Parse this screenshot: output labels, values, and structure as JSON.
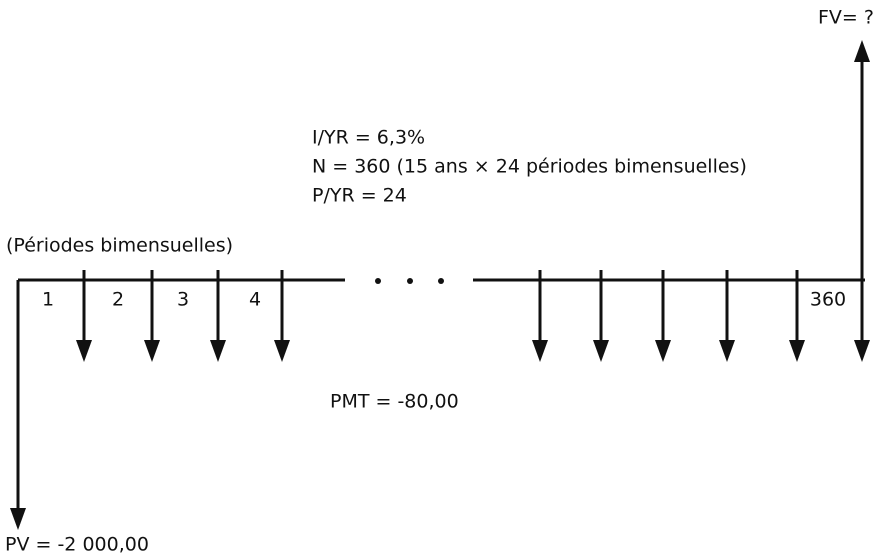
{
  "future_value": "FV= ?",
  "inputs": [
    "I/YR = 6,3%",
    "N = 360 (15 ans × 24 périodes bimensuelles)",
    "P/YR = 24"
  ],
  "axis_label": "(Périodes bimensuelles)",
  "periods": [
    "1",
    "2",
    "3",
    "4",
    "360"
  ],
  "payment": "PMT = -80,00",
  "present_value": "PV = -2 000,00"
}
